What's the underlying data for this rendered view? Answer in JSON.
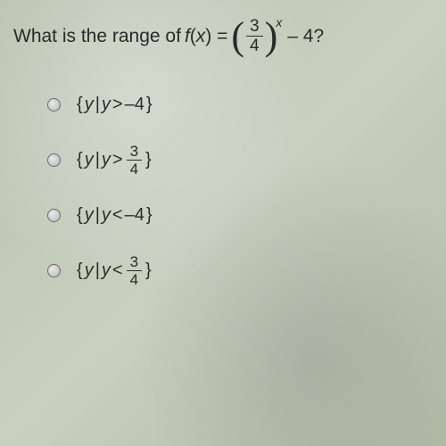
{
  "question": {
    "prefix": "What is the range of ",
    "func_name": "f",
    "func_var": "x",
    "equals": " = ",
    "fraction_num": "3",
    "fraction_den": "4",
    "exponent": "x",
    "suffix": " – 4?"
  },
  "options": [
    {
      "left_brace": "{",
      "var": "y",
      "bar": " | ",
      "var2": "y",
      "op": " > ",
      "value": "–4",
      "right_brace": "}",
      "has_fraction": false
    },
    {
      "left_brace": "{",
      "var": "y",
      "bar": " | ",
      "var2": "y",
      "op": " > ",
      "frac_num": "3",
      "frac_den": "4",
      "right_brace": "}",
      "has_fraction": true
    },
    {
      "left_brace": "{",
      "var": "y",
      "bar": " | ",
      "var2": "y",
      "op": " < ",
      "value": "–4",
      "right_brace": "}",
      "has_fraction": false
    },
    {
      "left_brace": "{",
      "var": "y",
      "bar": " | ",
      "var2": "y",
      "op": " < ",
      "frac_num": "3",
      "frac_den": "4",
      "right_brace": "}",
      "has_fraction": true
    }
  ],
  "colors": {
    "text": "#2a2a2a",
    "radio_border": "#6a6a6a",
    "background": "#c0ccb8"
  },
  "typography": {
    "question_fontsize": 21,
    "option_fontsize": 20,
    "fraction_fontsize": 19,
    "exponent_fontsize": 14
  }
}
